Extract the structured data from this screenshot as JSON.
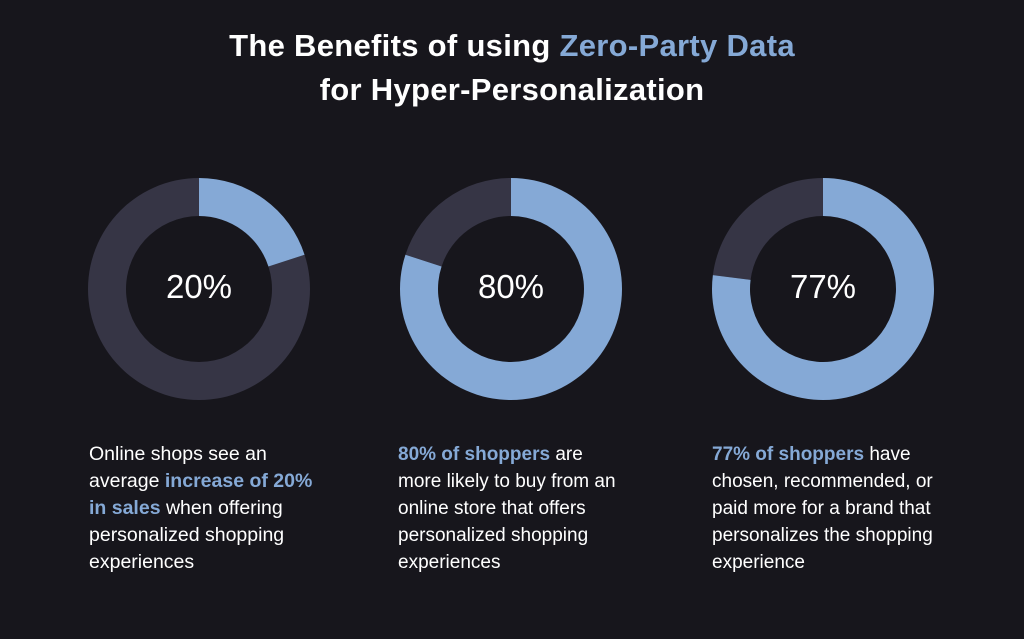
{
  "title": {
    "line1_prefix": "The Benefits of using ",
    "line1_highlight": "Zero-Party Data",
    "line2": "for Hyper-Personalization"
  },
  "colors": {
    "background": "#17161c",
    "track": "#363545",
    "accent": "#85a9d6",
    "text": "#ffffff"
  },
  "chart_data": [
    {
      "type": "pie",
      "variant": "donut",
      "label": "20%",
      "values": [
        20,
        80
      ],
      "highlighted_value": 20
    },
    {
      "type": "pie",
      "variant": "donut",
      "label": "80%",
      "values": [
        80,
        20
      ],
      "highlighted_value": 80
    },
    {
      "type": "pie",
      "variant": "donut",
      "label": "77%",
      "values": [
        77,
        23
      ],
      "highlighted_value": 77
    }
  ],
  "descriptions": [
    {
      "before": "Online shops see an average ",
      "highlight": "increase of 20% in sales",
      "after": " when offering personalized shopping experiences"
    },
    {
      "before": "",
      "highlight": "80% of shoppers",
      "after": " are more likely to buy from an online store that offers personalized shopping experiences"
    },
    {
      "before": "",
      "highlight": "77% of shoppers",
      "after": " have chosen, recommended, or paid more for a brand that personalizes the shopping experience"
    }
  ]
}
